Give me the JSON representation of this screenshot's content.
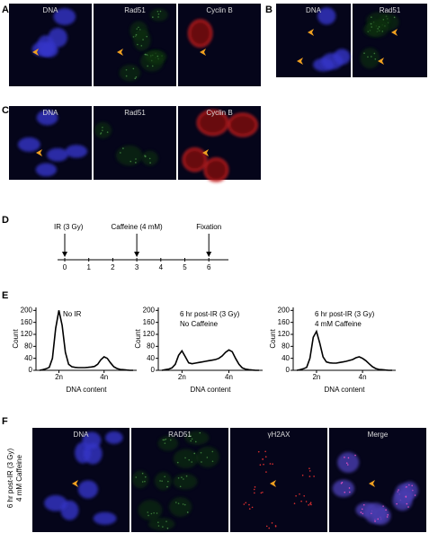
{
  "panels": {
    "A": {
      "label": "A",
      "images": [
        "DNA",
        "Rad51",
        "Cyclin B"
      ]
    },
    "B": {
      "label": "B",
      "images": [
        "DNA",
        "Rad51"
      ]
    },
    "C": {
      "label": "C",
      "images": [
        "DNA",
        "Rad51",
        "Cyclin B"
      ]
    },
    "D": {
      "label": "D",
      "ticks": [
        0,
        1,
        2,
        3,
        4,
        5,
        6
      ],
      "events": [
        {
          "text": "IR (3 Gy)",
          "hour": 0
        },
        {
          "text": "Caffeine (4 mM)",
          "hour": 3
        },
        {
          "text": "Fixation",
          "hour": 6
        }
      ]
    },
    "E": {
      "label": "E"
    },
    "F": {
      "label": "F",
      "side_label": [
        "6 hr post-IR (3 Gy)",
        "4 mM Caffeine"
      ],
      "images": [
        "DNA",
        "RAD51",
        "γH2AX",
        "Merge"
      ]
    }
  },
  "chart_data": [
    {
      "type": "line",
      "annotations": [
        "No IR"
      ],
      "xlabel": "DNA content",
      "ylabel": "Count",
      "color": "#000000",
      "categories": [
        null,
        null,
        null,
        null,
        null,
        null,
        "2n",
        null,
        null,
        null,
        null,
        null,
        null,
        null,
        null,
        null,
        null,
        null,
        null,
        null,
        "4n",
        null,
        null,
        null,
        null,
        null,
        null,
        null,
        null,
        null
      ],
      "values": [
        0,
        2,
        5,
        10,
        40,
        140,
        200,
        150,
        60,
        20,
        12,
        10,
        9,
        9,
        9,
        10,
        11,
        13,
        20,
        35,
        45,
        40,
        25,
        12,
        6,
        3,
        2,
        1,
        0,
        0
      ],
      "ylim": [
        0,
        210
      ],
      "yticks": [
        0,
        40,
        80,
        120,
        160,
        200
      ]
    },
    {
      "type": "line",
      "annotations": [
        "6 hr post-IR (3 Gy)",
        "No Caffeine"
      ],
      "xlabel": "DNA content",
      "ylabel": "Count",
      "color": "#000000",
      "categories": [
        null,
        null,
        null,
        null,
        null,
        null,
        "2n",
        null,
        null,
        null,
        null,
        null,
        null,
        null,
        null,
        null,
        null,
        null,
        null,
        null,
        "4n",
        null,
        null,
        null,
        null,
        null,
        null,
        null,
        null,
        null
      ],
      "values": [
        0,
        2,
        4,
        8,
        20,
        50,
        65,
        45,
        25,
        22,
        24,
        26,
        28,
        30,
        32,
        34,
        36,
        40,
        48,
        60,
        68,
        62,
        40,
        20,
        8,
        4,
        2,
        1,
        0,
        0
      ],
      "ylim": [
        0,
        210
      ],
      "yticks": [
        0,
        40,
        80,
        120,
        160,
        200
      ]
    },
    {
      "type": "line",
      "annotations": [
        "6 hr post-IR (3 Gy)",
        "4 mM Caffeine"
      ],
      "xlabel": "DNA content",
      "ylabel": "Count",
      "color": "#000000",
      "categories": [
        null,
        null,
        null,
        null,
        null,
        null,
        "2n",
        null,
        null,
        null,
        null,
        null,
        null,
        null,
        null,
        null,
        null,
        null,
        null,
        null,
        "4n",
        null,
        null,
        null,
        null,
        null,
        null,
        null,
        null,
        null
      ],
      "values": [
        0,
        2,
        5,
        10,
        40,
        110,
        130,
        90,
        45,
        28,
        25,
        24,
        24,
        26,
        28,
        30,
        33,
        36,
        42,
        45,
        40,
        32,
        22,
        12,
        6,
        3,
        2,
        1,
        0,
        0
      ],
      "ylim": [
        0,
        210
      ],
      "yticks": [
        0,
        40,
        80,
        120,
        160,
        200
      ]
    }
  ]
}
